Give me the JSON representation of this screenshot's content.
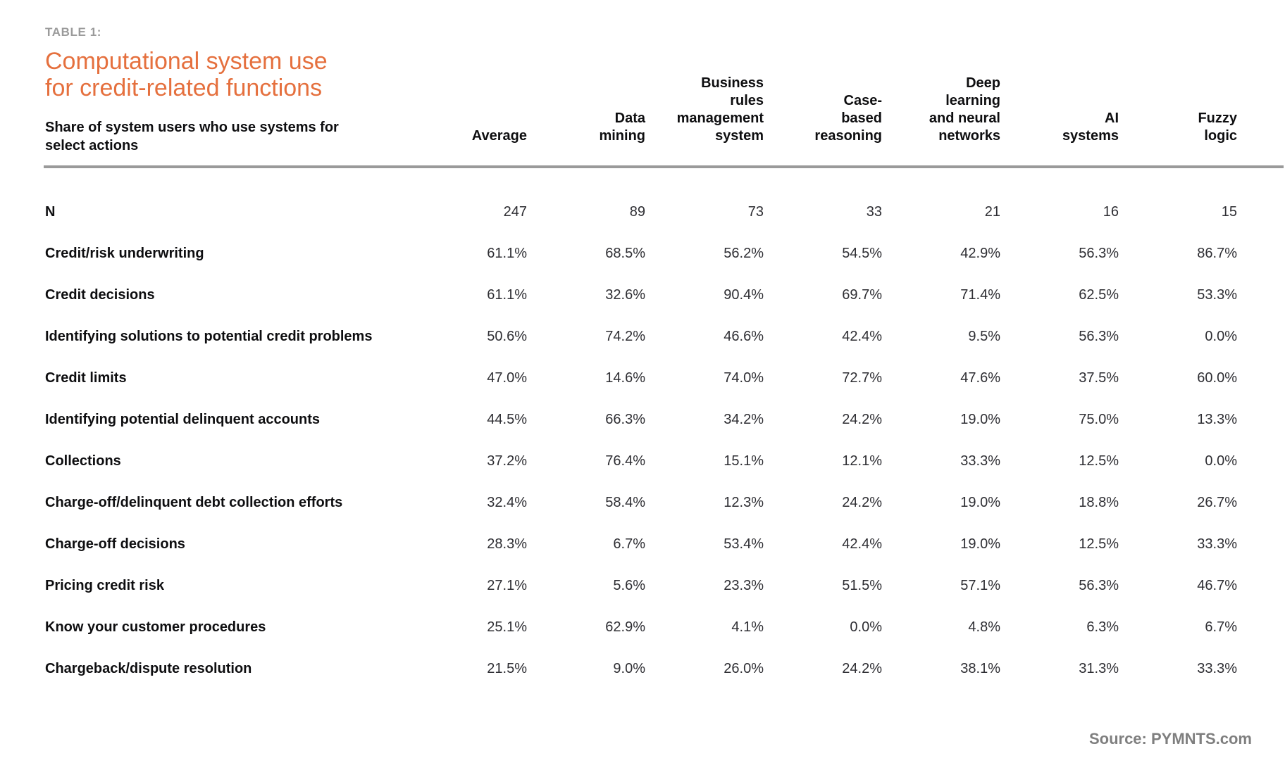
{
  "table_label": "TABLE 1:",
  "title": "Computational system use\nfor credit-related functions",
  "subtitle": "Share of system users who use systems for\nselect actions",
  "source": "Source: PYMNTS.com",
  "colors": {
    "title_orange": "#e5703e",
    "table_label_gray": "#9b9b9b",
    "rule_gray": "#9a9a9a",
    "label_black": "#0e0e10",
    "value_gray": "#2e2e33",
    "source_gray": "#7f7f7f"
  },
  "chart_data": {
    "type": "table",
    "title": "Computational system use for credit-related functions",
    "subtitle": "Share of system users who use systems for select actions",
    "columns": [
      {
        "name": "Average",
        "display": "Average"
      },
      {
        "name": "Data mining",
        "display": "Data\nmining"
      },
      {
        "name": "Business rules management system",
        "display": "Business\nrules\nmanagement\nsystem"
      },
      {
        "name": "Case-based reasoning",
        "display": "Case-\nbased\nreasoning"
      },
      {
        "name": "Deep learning and neural networks",
        "display": "Deep\nlearning\nand neural\nnetworks"
      },
      {
        "name": "AI systems",
        "display": "AI\nsystems"
      },
      {
        "name": "Fuzzy logic",
        "display": "Fuzzy\nlogic"
      }
    ],
    "rows": [
      {
        "label": "N",
        "values": [
          "247",
          "89",
          "73",
          "33",
          "21",
          "16",
          "15"
        ]
      },
      {
        "label": "Credit/risk underwriting",
        "values": [
          "61.1%",
          "68.5%",
          "56.2%",
          "54.5%",
          "42.9%",
          "56.3%",
          "86.7%"
        ]
      },
      {
        "label": "Credit decisions",
        "values": [
          "61.1%",
          "32.6%",
          "90.4%",
          "69.7%",
          "71.4%",
          "62.5%",
          "53.3%"
        ]
      },
      {
        "label": "Identifying solutions to potential credit problems",
        "values": [
          "50.6%",
          "74.2%",
          "46.6%",
          "42.4%",
          "9.5%",
          "56.3%",
          "0.0%"
        ]
      },
      {
        "label": "Credit limits",
        "values": [
          "47.0%",
          "14.6%",
          "74.0%",
          "72.7%",
          "47.6%",
          "37.5%",
          "60.0%"
        ]
      },
      {
        "label": "Identifying potential delinquent accounts",
        "values": [
          "44.5%",
          "66.3%",
          "34.2%",
          "24.2%",
          "19.0%",
          "75.0%",
          "13.3%"
        ]
      },
      {
        "label": "Collections",
        "values": [
          "37.2%",
          "76.4%",
          "15.1%",
          "12.1%",
          "33.3%",
          "12.5%",
          "0.0%"
        ]
      },
      {
        "label": "Charge-off/delinquent debt collection efforts",
        "values": [
          "32.4%",
          "58.4%",
          "12.3%",
          "24.2%",
          "19.0%",
          "18.8%",
          "26.7%"
        ]
      },
      {
        "label": "Charge-off decisions",
        "values": [
          "28.3%",
          "6.7%",
          "53.4%",
          "42.4%",
          "19.0%",
          "12.5%",
          "33.3%"
        ]
      },
      {
        "label": "Pricing credit risk",
        "values": [
          "27.1%",
          "5.6%",
          "23.3%",
          "51.5%",
          "57.1%",
          "56.3%",
          "46.7%"
        ]
      },
      {
        "label": "Know your customer procedures",
        "values": [
          "25.1%",
          "62.9%",
          "4.1%",
          "0.0%",
          "4.8%",
          "6.3%",
          "6.7%"
        ]
      },
      {
        "label": "Chargeback/dispute resolution",
        "values": [
          "21.5%",
          "9.0%",
          "26.0%",
          "24.2%",
          "38.1%",
          "31.3%",
          "33.3%"
        ]
      }
    ]
  }
}
